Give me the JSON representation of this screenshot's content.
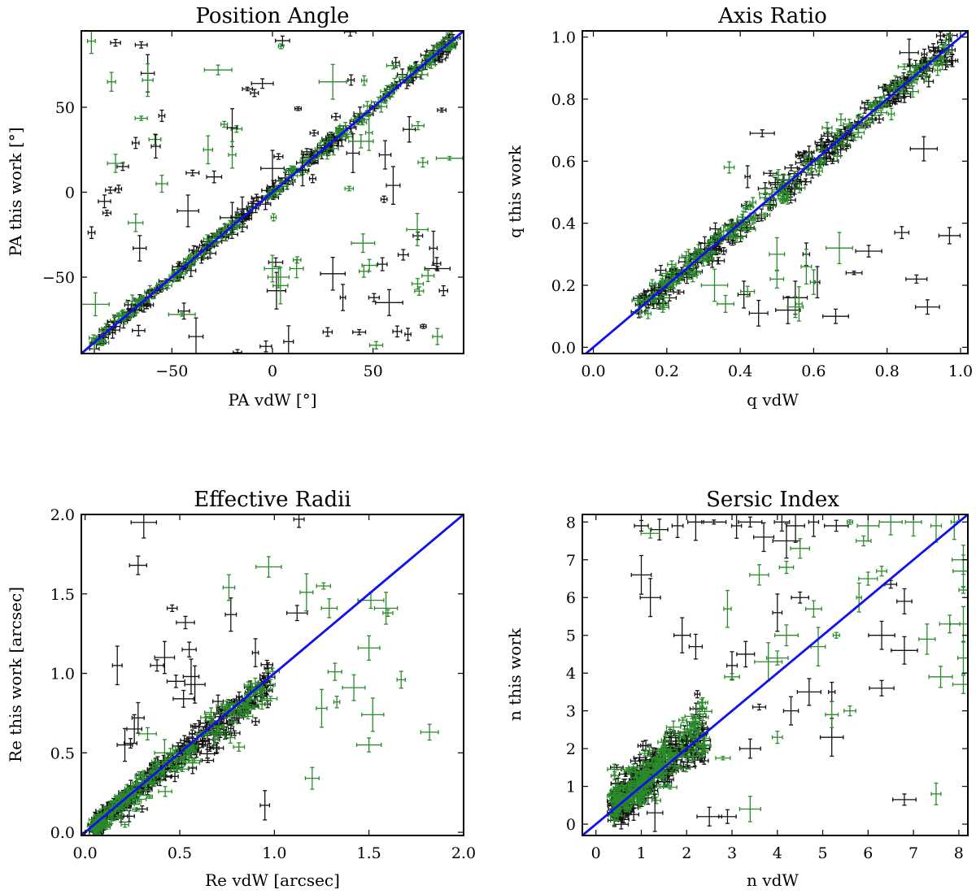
{
  "colors": {
    "black": "#111111",
    "green": "#2a8a2a",
    "line": "#1010ee"
  },
  "chart_data": [
    {
      "type": "scatter",
      "title": "Position Angle",
      "xlabel": "PA vdW [°]",
      "ylabel": "PA this work [°]",
      "xlim": [
        -95,
        95
      ],
      "ylim": [
        -95,
        95
      ],
      "xticks": [
        -50,
        0,
        50
      ],
      "xtick_labels": [
        "−50",
        "0",
        "50"
      ],
      "yticks": [
        -50,
        0,
        50
      ],
      "ytick_labels": [
        "−50",
        "0",
        "50"
      ],
      "one_to_one": true,
      "scatter_model": {
        "seed": 11,
        "n_black": 230,
        "n_green": 150,
        "scatter": 4.5,
        "outlier_frac": 0.12,
        "ranged": [
          -90,
          90
        ]
      },
      "series": [
        {
          "name": "outliers-black",
          "color": "black",
          "points": [
            [
              -78,
              88
            ],
            [
              -62,
              70
            ],
            [
              -55,
              45
            ],
            [
              -44,
              -70
            ],
            [
              -38,
              -85
            ],
            [
              -20,
              38
            ],
            [
              -15,
              -10
            ],
            [
              -5,
              64
            ],
            [
              0,
              14
            ],
            [
              3,
              21
            ],
            [
              8,
              -88
            ],
            [
              20,
              8
            ],
            [
              35,
              -62
            ],
            [
              40,
              23
            ],
            [
              56,
              22
            ],
            [
              58,
              -65
            ],
            [
              62,
              -82
            ],
            [
              75,
              -79
            ],
            [
              80,
              -33
            ],
            [
              82,
              -45
            ],
            [
              85,
              -58
            ],
            [
              60,
              4
            ],
            [
              15,
              13
            ],
            [
              -68,
              29
            ],
            [
              -58,
              27
            ],
            [
              -42,
              -11
            ],
            [
              -29,
              9
            ],
            [
              -20,
              -15
            ],
            [
              2,
              -58
            ],
            [
              30,
              -48
            ],
            [
              68,
              37
            ],
            [
              -66,
              -33
            ]
          ]
        },
        {
          "name": "outliers-green",
          "color": "green",
          "points": [
            [
              -90,
              89
            ],
            [
              -80,
              65
            ],
            [
              -78,
              17
            ],
            [
              -68,
              -18
            ],
            [
              -62,
              66
            ],
            [
              -55,
              5
            ],
            [
              -32,
              25
            ],
            [
              -27,
              72
            ],
            [
              -24,
              40
            ],
            [
              -20,
              22
            ],
            [
              0,
              -45
            ],
            [
              4,
              -55
            ],
            [
              12,
              -45
            ],
            [
              30,
              65
            ],
            [
              44,
              30
            ],
            [
              45,
              -30
            ],
            [
              48,
              35
            ],
            [
              82,
              -85
            ],
            [
              88,
              20
            ],
            [
              72,
              -22
            ],
            [
              -45,
              -72
            ],
            [
              -88,
              -66
            ],
            [
              3,
              -50
            ]
          ]
        }
      ]
    },
    {
      "type": "scatter",
      "title": "Axis Ratio",
      "xlabel": "q vdW",
      "ylabel": "q this work",
      "xlim": [
        -0.03,
        1.02
      ],
      "ylim": [
        -0.02,
        1.02
      ],
      "xticks": [
        0,
        0.2,
        0.4,
        0.6,
        0.8,
        1.0
      ],
      "xtick_labels": [
        "0.0",
        "0.2",
        "0.4",
        "0.6",
        "0.8",
        "1.0"
      ],
      "yticks": [
        0,
        0.2,
        0.4,
        0.6,
        0.8,
        1.0
      ],
      "ytick_labels": [
        "0.0",
        "0.2",
        "0.4",
        "0.6",
        "0.8",
        "1.0"
      ],
      "one_to_one": true,
      "scatter_model": {
        "seed": 23,
        "n_black": 230,
        "n_green": 160,
        "scatter": 0.055,
        "outlier_frac": 0.08,
        "ranged": [
          0.12,
          0.98
        ]
      },
      "series": [
        {
          "name": "outliers-black",
          "color": "black",
          "points": [
            [
              0.71,
              0.24
            ],
            [
              0.66,
              0.1
            ],
            [
              0.61,
              0.21
            ],
            [
              0.55,
              0.16
            ],
            [
              0.53,
              0.12
            ],
            [
              0.45,
              0.11
            ],
            [
              0.41,
              0.17
            ],
            [
              0.75,
              0.31
            ],
            [
              0.88,
              0.22
            ],
            [
              0.91,
              0.13
            ],
            [
              0.97,
              0.36
            ],
            [
              0.84,
              0.37
            ],
            [
              0.58,
              0.3
            ],
            [
              0.46,
              0.69
            ],
            [
              0.42,
              0.55
            ],
            [
              0.86,
              0.95
            ],
            [
              0.9,
              0.64
            ]
          ]
        },
        {
          "name": "outliers-green",
          "color": "green",
          "points": [
            [
              0.55,
              0.13
            ],
            [
              0.56,
              0.14
            ],
            [
              0.5,
              0.22
            ],
            [
              0.36,
              0.14
            ],
            [
              0.33,
              0.2
            ],
            [
              0.67,
              0.32
            ],
            [
              0.6,
              0.21
            ],
            [
              0.42,
              0.18
            ],
            [
              0.5,
              0.3
            ],
            [
              0.58,
              0.26
            ],
            [
              0.37,
              0.58
            ]
          ]
        }
      ]
    },
    {
      "type": "scatter",
      "title": "Effective Radii",
      "xlabel": "Re vdW [arcsec]",
      "ylabel": "Re this work [arcsec]",
      "xlim": [
        -0.02,
        2.0
      ],
      "ylim": [
        -0.02,
        2.0
      ],
      "xticks": [
        0,
        0.5,
        1.0,
        1.5,
        2.0
      ],
      "xtick_labels": [
        "0.0",
        "0.5",
        "1.0",
        "1.5",
        "2.0"
      ],
      "yticks": [
        0,
        0.5,
        1.0,
        1.5,
        2.0
      ],
      "ytick_labels": [
        "0.0",
        "0.5",
        "1.0",
        "1.5",
        "2.0"
      ],
      "one_to_one": true,
      "scatter_model": {
        "seed": 37,
        "n_black": 260,
        "n_green": 180,
        "scatter": 0.06,
        "outlier_frac": 0.0,
        "ranged": [
          0.05,
          1.0
        ]
      },
      "series": [
        {
          "name": "outliers-black",
          "color": "black",
          "points": [
            [
              0.17,
              1.05
            ],
            [
              0.21,
              0.55
            ],
            [
              0.24,
              0.56
            ],
            [
              0.28,
              1.68
            ],
            [
              0.31,
              1.95
            ],
            [
              0.38,
              1.05
            ],
            [
              0.42,
              1.1
            ],
            [
              0.46,
              1.41
            ],
            [
              0.53,
              1.32
            ],
            [
              0.55,
              1.15
            ],
            [
              0.56,
              0.98
            ],
            [
              0.58,
              0.93
            ],
            [
              0.77,
              1.37
            ],
            [
              0.9,
              1.13
            ],
            [
              1.12,
              1.38
            ],
            [
              1.13,
              1.97
            ],
            [
              0.95,
              0.17
            ],
            [
              0.28,
              0.72
            ],
            [
              0.26,
              0.65
            ],
            [
              0.48,
              0.95
            ],
            [
              0.52,
              0.84
            ]
          ]
        },
        {
          "name": "outliers-green",
          "color": "green",
          "points": [
            [
              0.76,
              1.54
            ],
            [
              0.97,
              1.67
            ],
            [
              1.17,
              1.51
            ],
            [
              1.26,
              1.55
            ],
            [
              1.29,
              1.41
            ],
            [
              1.32,
              1.01
            ],
            [
              1.42,
              0.91
            ],
            [
              1.5,
              1.16
            ],
            [
              1.51,
              1.46
            ],
            [
              1.52,
              0.74
            ],
            [
              1.5,
              0.55
            ],
            [
              1.59,
              1.41
            ],
            [
              1.6,
              1.38
            ],
            [
              1.67,
              0.96
            ],
            [
              1.82,
              0.63
            ],
            [
              1.2,
              0.34
            ],
            [
              1.25,
              0.78
            ],
            [
              1.33,
              0.82
            ],
            [
              0.42,
              0.5
            ],
            [
              0.33,
              0.62
            ]
          ]
        }
      ]
    },
    {
      "type": "scatter",
      "title": "Sersic Index",
      "xlabel": "n vdW",
      "ylabel": "n this work",
      "xlim": [
        -0.3,
        8.2
      ],
      "ylim": [
        -0.3,
        8.2
      ],
      "xticks": [
        0,
        1,
        2,
        3,
        4,
        5,
        6,
        7,
        8
      ],
      "xtick_labels": [
        "0",
        "1",
        "2",
        "3",
        "4",
        "5",
        "6",
        "7",
        "8"
      ],
      "yticks": [
        0,
        1,
        2,
        3,
        4,
        5,
        6,
        7,
        8
      ],
      "ytick_labels": [
        "0",
        "1",
        "2",
        "3",
        "4",
        "5",
        "6",
        "7",
        "8"
      ],
      "one_to_one": true,
      "scatter_model": {
        "seed": 51,
        "n_black": 250,
        "n_green": 200,
        "scatter": 0.6,
        "outlier_frac": 0.0,
        "ranged": [
          0.4,
          2.4
        ]
      },
      "series": [
        {
          "name": "outliers-black",
          "color": "black",
          "points": [
            [
              1.0,
              7.9
            ],
            [
              1.4,
              7.8
            ],
            [
              1.8,
              7.9
            ],
            [
              2.2,
              8.0
            ],
            [
              2.6,
              8.0
            ],
            [
              3.1,
              7.9
            ],
            [
              3.4,
              8.0
            ],
            [
              3.7,
              7.6
            ],
            [
              4.1,
              8.0
            ],
            [
              4.4,
              7.9
            ],
            [
              4.8,
              8.0
            ],
            [
              5.3,
              7.9
            ],
            [
              1.0,
              6.6
            ],
            [
              1.2,
              6.0
            ],
            [
              4.2,
              7.5
            ],
            [
              6.5,
              6.35
            ],
            [
              6.3,
              5.0
            ],
            [
              6.8,
              5.9
            ],
            [
              6.3,
              3.6
            ],
            [
              6.8,
              4.6
            ],
            [
              5.2,
              2.3
            ],
            [
              4.5,
              6.0
            ],
            [
              4.0,
              5.6
            ],
            [
              3.6,
              3.1
            ],
            [
              3.4,
              2.0
            ],
            [
              2.9,
              0.2
            ],
            [
              2.5,
              0.2
            ],
            [
              1.9,
              5.0
            ],
            [
              6.8,
              0.65
            ],
            [
              2.2,
              4.7
            ],
            [
              3.0,
              4.2
            ],
            [
              3.3,
              4.5
            ],
            [
              4.3,
              3.0
            ],
            [
              5.2,
              3.5
            ],
            [
              4.7,
              3.5
            ],
            [
              2.0,
              2.2
            ],
            [
              1.3,
              0.3
            ]
          ]
        },
        {
          "name": "outliers-green",
          "color": "green",
          "points": [
            [
              5.6,
              8.0
            ],
            [
              6.0,
              7.9
            ],
            [
              6.5,
              8.0
            ],
            [
              7.0,
              8.0
            ],
            [
              7.5,
              7.9
            ],
            [
              7.9,
              8.0
            ],
            [
              8.1,
              7.0
            ],
            [
              8.1,
              6.7
            ],
            [
              8.1,
              6.2
            ],
            [
              8.1,
              5.3
            ],
            [
              8.1,
              4.4
            ],
            [
              8.1,
              3.7
            ],
            [
              7.8,
              5.3
            ],
            [
              7.3,
              4.9
            ],
            [
              7.6,
              3.9
            ],
            [
              7.5,
              0.8
            ],
            [
              5.9,
              7.5
            ],
            [
              6.0,
              6.5
            ],
            [
              5.8,
              6.0
            ],
            [
              6.3,
              6.7
            ],
            [
              4.5,
              7.3
            ],
            [
              4.2,
              6.8
            ],
            [
              3.6,
              6.6
            ],
            [
              4.8,
              5.7
            ],
            [
              4.2,
              5.0
            ],
            [
              4.0,
              4.4
            ],
            [
              3.8,
              4.3
            ],
            [
              5.6,
              3.0
            ],
            [
              5.2,
              2.9
            ],
            [
              4.0,
              2.3
            ],
            [
              3.4,
              0.4
            ],
            [
              1.5,
              1.7
            ],
            [
              2.0,
              1.8
            ],
            [
              2.8,
              1.75
            ],
            [
              1.2,
              7.7
            ],
            [
              5.3,
              5.0
            ],
            [
              4.9,
              4.7
            ],
            [
              3.0,
              3.9
            ],
            [
              2.9,
              5.7
            ]
          ]
        }
      ]
    }
  ]
}
